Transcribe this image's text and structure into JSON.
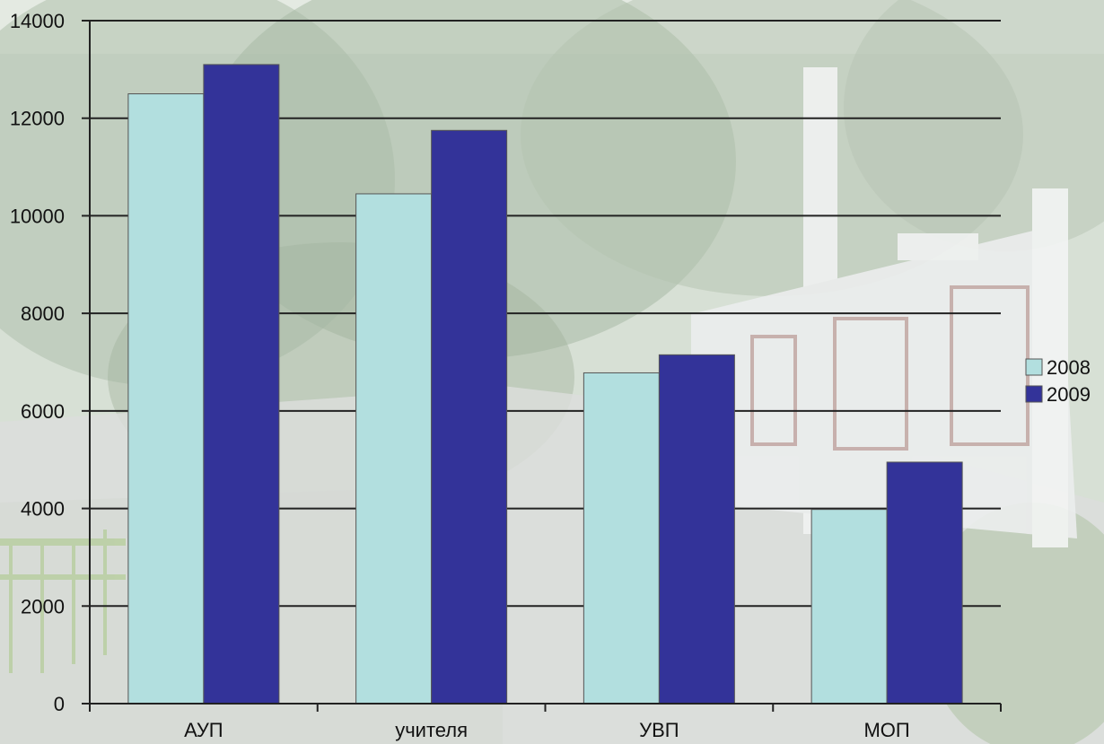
{
  "chart_data": {
    "type": "bar",
    "categories": [
      "АУП",
      "учителя",
      "УВП",
      "МОП"
    ],
    "series": [
      {
        "name": "2008",
        "values": [
          12500,
          10450,
          6780,
          3980
        ],
        "color": "#b2dfdf"
      },
      {
        "name": "2009",
        "values": [
          13100,
          11750,
          7150,
          4950
        ],
        "color": "#333399"
      }
    ],
    "ylim": [
      0,
      14000
    ],
    "yticks": [
      "0",
      "2000",
      "4000",
      "6000",
      "8000",
      "10000",
      "12000",
      "14000"
    ],
    "grid": true,
    "legend": "right",
    "title": "",
    "xlabel": "",
    "ylabel": ""
  },
  "background": {
    "sky": "#dde6df",
    "foliage": "#8fa58a",
    "building": "#e9ecec",
    "road": "#c9cbc9"
  }
}
